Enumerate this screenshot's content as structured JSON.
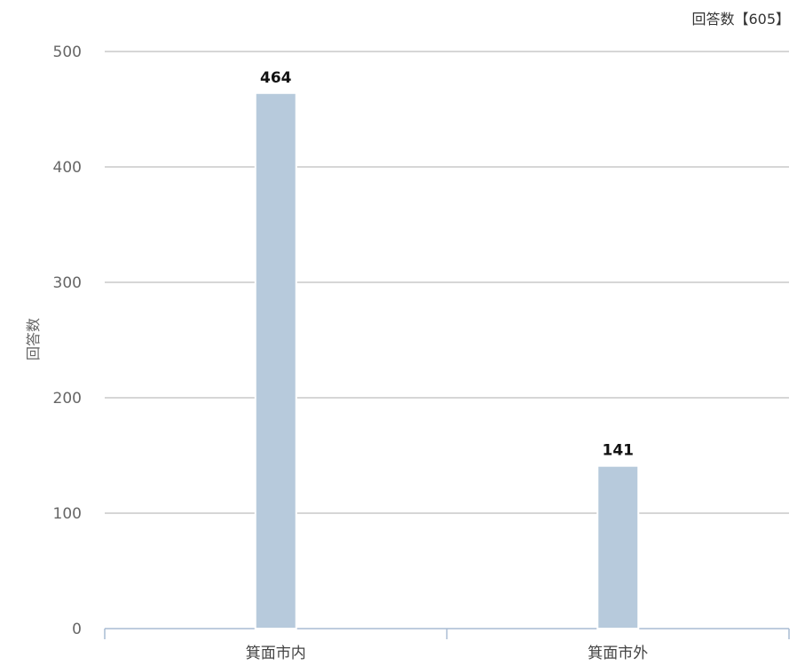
{
  "header": {
    "total_label": "回答数【605】"
  },
  "chart_data": {
    "type": "bar",
    "title": "",
    "xlabel": "",
    "ylabel": "回答数",
    "categories": [
      "箕面市内",
      "箕面市外"
    ],
    "values": [
      464,
      141
    ],
    "ylim": [
      0,
      500
    ],
    "yticks": [
      0,
      100,
      200,
      300,
      400,
      500
    ],
    "data_labels": [
      "464",
      "141"
    ],
    "grid": true,
    "colors": {
      "bar": "#b7cadc",
      "bar_edge": "#ffffff",
      "grid": "#c8c8c8",
      "axis": "#a9bcd3"
    }
  }
}
